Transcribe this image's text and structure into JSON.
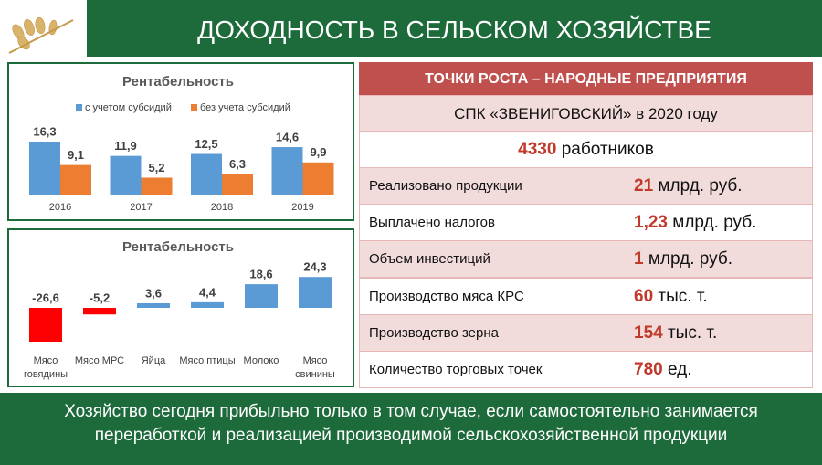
{
  "header": {
    "title": "ДОХОДНОСТЬ В СЕЛЬСКОМ ХОЗЯЙСТВЕ"
  },
  "chart_data": [
    {
      "type": "bar",
      "title": "Рентабельность",
      "legend": "top",
      "categories": [
        "2016",
        "2017",
        "2018",
        "2019"
      ],
      "series": [
        {
          "name": "с учетом субсидий",
          "color": "#5b9bd5",
          "values": [
            16.3,
            11.9,
            12.5,
            14.6
          ],
          "value_labels": [
            "16,3",
            "11,9",
            "12,5",
            "14,6"
          ]
        },
        {
          "name": "без учета субсидий",
          "color": "#ed7d31",
          "values": [
            9.1,
            5.2,
            6.3,
            9.9
          ],
          "value_labels": [
            "9,1",
            "5,2",
            "6,3",
            "9,9"
          ]
        }
      ]
    },
    {
      "type": "bar",
      "title": "Рентабельность",
      "categories": [
        "Мясо говядины",
        "Мясо МРС",
        "Яйца",
        "Мясо птицы",
        "Молоко",
        "Мясо свинины"
      ],
      "values": [
        -26.6,
        -5.2,
        3.6,
        4.4,
        18.6,
        24.3
      ],
      "value_labels": [
        "-26,6",
        "-5,2",
        "3,6",
        "4,4",
        "18,6",
        "24,3"
      ],
      "color": "#5b9bd5",
      "negative_color": "#ff0000"
    }
  ],
  "table": {
    "title": "ТОЧКИ РОСТА – НАРОДНЫЕ ПРЕДПРИЯТИЯ",
    "subtitle": "СПК «ЗВЕНИГОВСКИЙ» в 2020 году",
    "workers": {
      "value": "4330",
      "unit": "работников"
    },
    "rows": [
      {
        "label": "Реализовано продукции",
        "value": "21",
        "unit": "млрд. руб."
      },
      {
        "label": "Выплачено налогов",
        "value": "1,23",
        "unit": "млрд. руб."
      },
      {
        "label": "Объем инвестиций",
        "value": "1",
        "unit": "млрд. руб."
      },
      {
        "label": "Производство мяса КРС",
        "value": "60",
        "unit": "тыс. т."
      },
      {
        "label": "Производство зерна",
        "value": "154",
        "unit": "тыс. т."
      },
      {
        "label": "Количество торговых точек",
        "value": "780",
        "unit": "ед."
      }
    ]
  },
  "footer": {
    "text": "Хозяйство сегодня прибыльно только в том случае, если самостоятельно занимается переработкой и реализацией производимой сельскохозяйственной продукции"
  }
}
